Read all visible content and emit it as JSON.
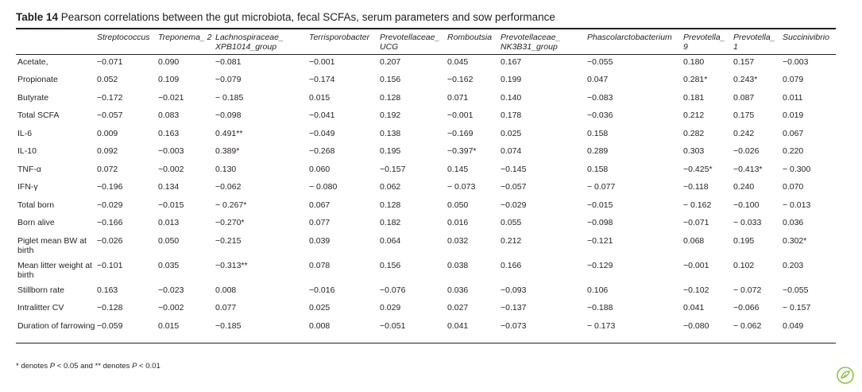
{
  "caption": {
    "label": "Table 14",
    "text": "Pearson correlations between the gut microbiota, fecal SCFAs, serum parameters and sow performance"
  },
  "columns": [
    "",
    "Streptococcus",
    "Treponema_ 2",
    "Lachnospiraceae_ XPB1014_group",
    "Terrisporobacter",
    "Prevotellaceae_ UCG",
    "Romboutsia",
    "Prevotellaceae_ NK3B31_group",
    "Phascolarctobacterium",
    "Prevotella_ 9",
    "Prevotella_ 1",
    "Succinivibrio"
  ],
  "rows": [
    {
      "label": "Acetate,",
      "values": [
        "−0.071",
        "0.090",
        "−0.081",
        "−0.001",
        "0.207",
        "0.045",
        "0.167",
        "−0.055",
        "0.180",
        "0.157",
        "−0.003"
      ]
    },
    {
      "label": "Propionate",
      "values": [
        "0.052",
        "0.109",
        "−0.079",
        "−0.174",
        "0.156",
        "−0.162",
        "0.199",
        "0.047",
        "0.281*",
        "0.243*",
        "0.079"
      ]
    },
    {
      "label": "Butyrate",
      "values": [
        "−0.172",
        "−0.021",
        "− 0.185",
        "0.015",
        "0.128",
        "0.071",
        "0.140",
        "−0.083",
        "0.181",
        "0.087",
        "0.011"
      ]
    },
    {
      "label": "Total SCFA",
      "values": [
        "−0.057",
        "0.083",
        "−0.098",
        "−0.041",
        "0.192",
        "−0.001",
        "0.178",
        "−0.036",
        "0.212",
        "0.175",
        "0.019"
      ]
    },
    {
      "label": "IL-6",
      "values": [
        "0.009",
        "0.163",
        "0.491**",
        "−0.049",
        "0.138",
        "−0.169",
        "0.025",
        "0.158",
        "0.282",
        "0.242",
        "0.067"
      ]
    },
    {
      "label": "IL-10",
      "values": [
        "0.092",
        "−0.003",
        "0.389*",
        "−0.268",
        "0.195",
        "−0.397*",
        "0.074",
        "0.289",
        "0.303",
        "−0.026",
        "0.220"
      ]
    },
    {
      "label": "TNF-α",
      "values": [
        "0.072",
        "−0.002",
        "0.130",
        "0.060",
        "−0.157",
        "0.145",
        "−0.145",
        "0.158",
        "−0.425*",
        "−0.413*",
        "− 0.300"
      ]
    },
    {
      "label": "IFN-γ",
      "values": [
        "−0.196",
        "0.134",
        "−0.062",
        "− 0.080",
        "0.062",
        "− 0.073",
        "−0.057",
        "− 0.077",
        "−0.118",
        "0.240",
        "0.070"
      ]
    },
    {
      "label": "Total born",
      "values": [
        "−0.029",
        "−0.015",
        "− 0.267*",
        "0.067",
        "0.128",
        "0.050",
        "−0.029",
        "−0.015",
        "− 0.162",
        "−0.100",
        "− 0.013"
      ]
    },
    {
      "label": "Born alive",
      "values": [
        "−0.166",
        "0.013",
        "−0.270*",
        "0.077",
        "0.182",
        "0.016",
        "0.055",
        "−0.098",
        "−0.071",
        "− 0.033",
        "0.036"
      ]
    },
    {
      "label": "Piglet mean BW at birth",
      "values": [
        "−0.026",
        "0.050",
        "−0.215",
        "0.039",
        "0.064",
        "0.032",
        "0.212",
        "−0.121",
        "0.068",
        "0.195",
        "0.302*"
      ],
      "tall": true
    },
    {
      "label": "Mean litter weight at birth",
      "values": [
        "−0.101",
        "0.035",
        "−0.313**",
        "0.078",
        "0.156",
        "0.038",
        "0.166",
        "−0.129",
        "−0.001",
        "0.102",
        "0.203"
      ],
      "tall": true
    },
    {
      "label": "Stillborn rate",
      "values": [
        "0.163",
        "−0.023",
        "0.008",
        "−0.016",
        "−0.076",
        "0.036",
        "−0.093",
        "0.106",
        "−0.102",
        "− 0.072",
        "−0.055"
      ]
    },
    {
      "label": "Intralitter CV",
      "values": [
        "−0.128",
        "−0.002",
        "0.077",
        "0.025",
        "0.029",
        "0.027",
        "−0.137",
        "−0.188",
        "0.041",
        "−0.066",
        "− 0.157"
      ]
    },
    {
      "label": "Duration of farrowing",
      "values": [
        "−0.059",
        "0.015",
        "−0.185",
        "0.008",
        "−0.051",
        "0.041",
        "−0.073",
        "− 0.173",
        "−0.080",
        "− 0.062",
        "0.049"
      ],
      "tall": true
    }
  ],
  "footnote": "* denotes P < 0.05 and ** denotes P < 0.01",
  "logo": {
    "icon": "journal-logo-icon",
    "color": "#8cc63f"
  }
}
